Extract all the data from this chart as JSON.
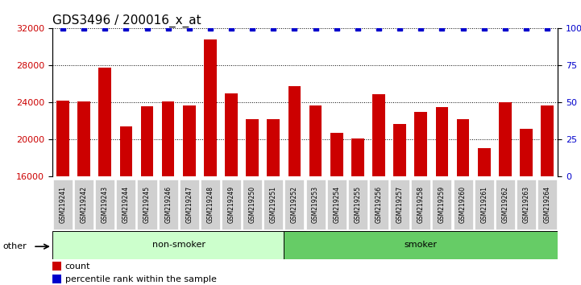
{
  "title": "GDS3496 / 200016_x_at",
  "categories": [
    "GSM219241",
    "GSM219242",
    "GSM219243",
    "GSM219244",
    "GSM219245",
    "GSM219246",
    "GSM219247",
    "GSM219248",
    "GSM219249",
    "GSM219250",
    "GSM219251",
    "GSM219252",
    "GSM219253",
    "GSM219254",
    "GSM219255",
    "GSM219256",
    "GSM219257",
    "GSM219258",
    "GSM219259",
    "GSM219260",
    "GSM219261",
    "GSM219262",
    "GSM219263",
    "GSM219264"
  ],
  "values": [
    24200,
    24100,
    27800,
    21400,
    23600,
    24100,
    23700,
    30800,
    25000,
    22200,
    22200,
    25800,
    23700,
    20700,
    20100,
    24900,
    21700,
    23000,
    23500,
    22200,
    19100,
    24000,
    21200,
    23700
  ],
  "percentile_values": [
    100,
    100,
    100,
    100,
    100,
    100,
    100,
    100,
    100,
    100,
    100,
    100,
    100,
    100,
    100,
    100,
    100,
    100,
    100,
    100,
    100,
    100,
    100,
    100
  ],
  "bar_color": "#cc0000",
  "percentile_color": "#0000cc",
  "ylim_left": [
    16000,
    32000
  ],
  "ylim_right": [
    0,
    100
  ],
  "yticks_left": [
    16000,
    20000,
    24000,
    28000,
    32000
  ],
  "yticks_right": [
    0,
    25,
    50,
    75,
    100
  ],
  "groups": [
    {
      "label": "non-smoker",
      "start": 0,
      "end": 11,
      "color": "#ccffcc"
    },
    {
      "label": "smoker",
      "start": 11,
      "end": 23,
      "color": "#66cc66"
    }
  ],
  "group_label_other": "other",
  "legend_count_label": "count",
  "legend_percentile_label": "percentile rank within the sample",
  "bg_color": "#ffffff",
  "plot_bg_color": "#ffffff",
  "grid_color": "#000000",
  "tick_label_color_left": "#cc0000",
  "tick_label_color_right": "#0000cc",
  "title_fontsize": 11,
  "bar_width": 0.6
}
